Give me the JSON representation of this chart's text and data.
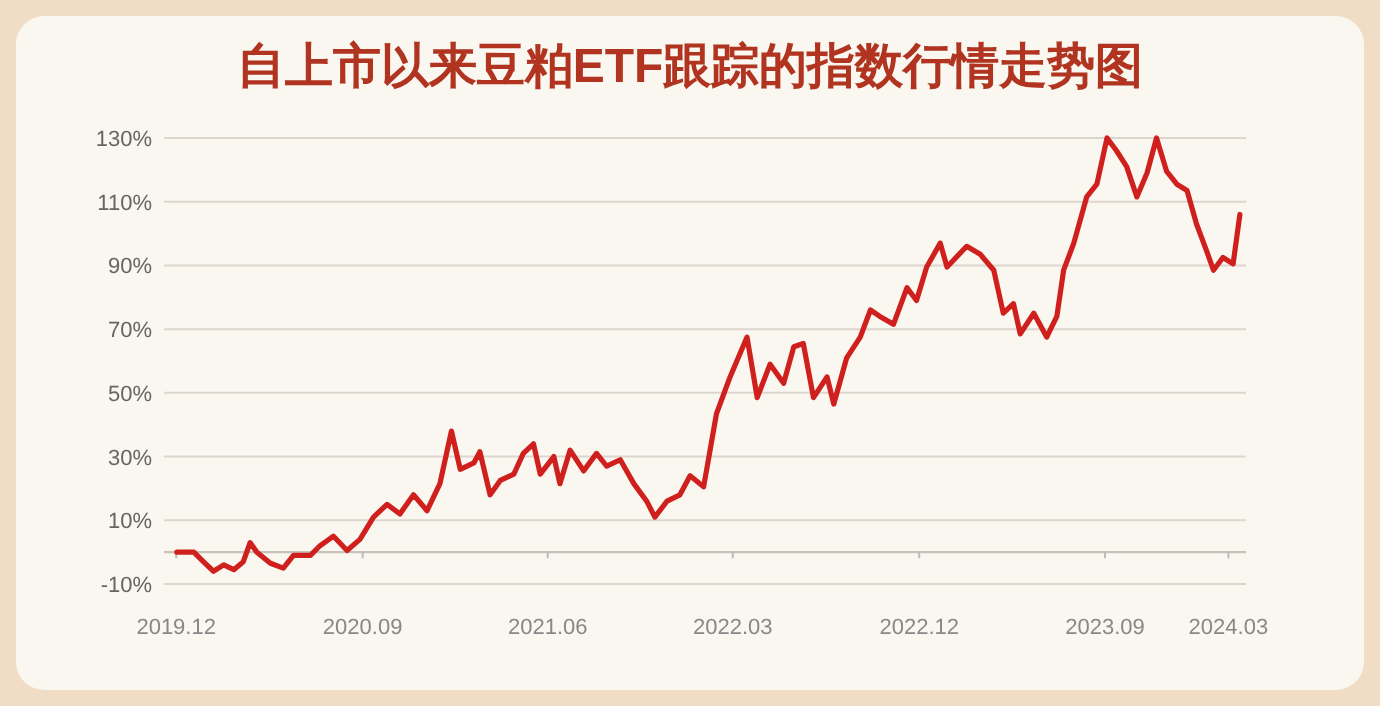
{
  "chart_data": {
    "type": "line",
    "title": "自上市以来豆粕ETF跟踪的指数行情走势图",
    "x": [
      "2019-12-02",
      "2019-12-27",
      "2020-01-10",
      "2020-01-25",
      "2020-02-09",
      "2020-02-24",
      "2020-03-09",
      "2020-03-19",
      "2020-03-29",
      "2020-04-18",
      "2020-05-07",
      "2020-05-22",
      "2020-06-16",
      "2020-06-30",
      "2020-07-20",
      "2020-08-09",
      "2020-08-28",
      "2020-09-17",
      "2020-10-07",
      "2020-10-26",
      "2020-11-15",
      "2020-12-05",
      "2020-12-24",
      "2021-01-10",
      "2021-01-23",
      "2021-02-12",
      "2021-02-21",
      "2021-03-08",
      "2021-03-23",
      "2021-04-12",
      "2021-04-26",
      "2021-05-11",
      "2021-05-21",
      "2021-06-10",
      "2021-06-19",
      "2021-07-04",
      "2021-07-24",
      "2021-08-12",
      "2021-08-27",
      "2021-09-16",
      "2021-10-06",
      "2021-10-25",
      "2021-11-06",
      "2021-11-24",
      "2021-12-13",
      "2021-12-28",
      "2022-01-17",
      "2022-02-05",
      "2022-02-25",
      "2022-03-07",
      "2022-03-22",
      "2022-04-06",
      "2022-04-25",
      "2022-05-15",
      "2022-05-30",
      "2022-06-13",
      "2022-06-28",
      "2022-07-18",
      "2022-07-28",
      "2022-08-16",
      "2022-09-05",
      "2022-09-20",
      "2022-10-04",
      "2022-10-24",
      "2022-11-13",
      "2022-11-27",
      "2022-12-12",
      "2023-01-01",
      "2023-01-11",
      "2023-02-09",
      "2023-03-01",
      "2023-03-21",
      "2023-04-04",
      "2023-04-19",
      "2023-04-29",
      "2023-05-19",
      "2023-06-07",
      "2023-06-22",
      "2023-07-02",
      "2023-07-17",
      "2023-08-05",
      "2023-08-20",
      "2023-09-04",
      "2023-09-18",
      "2023-10-03",
      "2023-10-18",
      "2023-11-02",
      "2023-11-16",
      "2023-12-01",
      "2023-12-16",
      "2023-12-31",
      "2024-01-14",
      "2024-01-29",
      "2024-02-08",
      "2024-02-22",
      "2024-03-08",
      "2024-03-18"
    ],
    "series": [
      {
        "color": "#d0201e",
        "values": [
          0,
          0,
          -3,
          -6,
          -4,
          -5.5,
          -3,
          3,
          0,
          -3.5,
          -5,
          -1,
          -1,
          2,
          5,
          0.5,
          4,
          11,
          15,
          12,
          18,
          13,
          21.5,
          38,
          26,
          28,
          31.5,
          18,
          22.5,
          24.5,
          31,
          34,
          24.5,
          30,
          21.5,
          32,
          25.5,
          31,
          27,
          29,
          21.5,
          16,
          11,
          16,
          18,
          24,
          20.5,
          43.5,
          55,
          60,
          67.5,
          48.5,
          59,
          53,
          64.5,
          65.5,
          48.5,
          55,
          46.5,
          61,
          67.5,
          76,
          74,
          71.5,
          83,
          79,
          89.5,
          97,
          89.5,
          96,
          93.5,
          88.5,
          75,
          78,
          68.5,
          75,
          67.5,
          74,
          88.5,
          97,
          111.5,
          115.5,
          130,
          126,
          121,
          111.5,
          119,
          130,
          119.5,
          115.5,
          113.5,
          103,
          94.5,
          88.5,
          92.5,
          90.5,
          106
        ]
      }
    ],
    "xlim": [
      "2019-11-13",
      "2024-03-27"
    ],
    "xticks": [
      {
        "value": "2019-12-01",
        "label": "2019.12"
      },
      {
        "value": "2020-09-01",
        "label": "2020.09"
      },
      {
        "value": "2021-06-01",
        "label": "2021.06"
      },
      {
        "value": "2022-03-01",
        "label": "2022.03"
      },
      {
        "value": "2022-12-01",
        "label": "2022.12"
      },
      {
        "value": "2023-09-01",
        "label": "2023.09"
      },
      {
        "value": "2024-03-01",
        "label": "2024.03"
      }
    ],
    "ylim": [
      -10,
      130
    ],
    "yticks": [
      {
        "value": -10,
        "label": "-10%"
      },
      {
        "value": 10,
        "label": "10%"
      },
      {
        "value": 30,
        "label": "30%"
      },
      {
        "value": 50,
        "label": "50%"
      },
      {
        "value": 70,
        "label": "70%"
      },
      {
        "value": 90,
        "label": "90%"
      },
      {
        "value": 110,
        "label": "110%"
      },
      {
        "value": 130,
        "label": "130%"
      }
    ],
    "grid": "y",
    "line_style": "solid",
    "marker": "none"
  }
}
